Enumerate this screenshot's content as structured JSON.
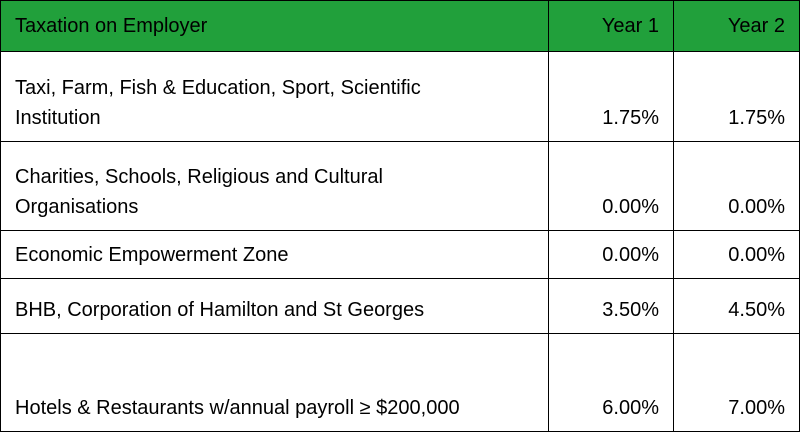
{
  "table": {
    "header": [
      "Taxation on Employer",
      "Year 1",
      "Year 2"
    ],
    "rows": [
      [
        "Taxi, Farm, Fish & Education, Sport, Scientific Institution",
        "1.75%",
        "1.75%"
      ],
      [
        "Charities, Schools, Religious and Cultural Organisations",
        "0.00%",
        "0.00%"
      ],
      [
        "Economic Empowerment Zone",
        "0.00%",
        "0.00%"
      ],
      [
        "BHB, Corporation of Hamilton and St Georges",
        "3.50%",
        "4.50%"
      ],
      [
        "Hotels & Restaurants w/annual payroll ≥ $200,000",
        "6.00%",
        "7.00%"
      ]
    ]
  }
}
